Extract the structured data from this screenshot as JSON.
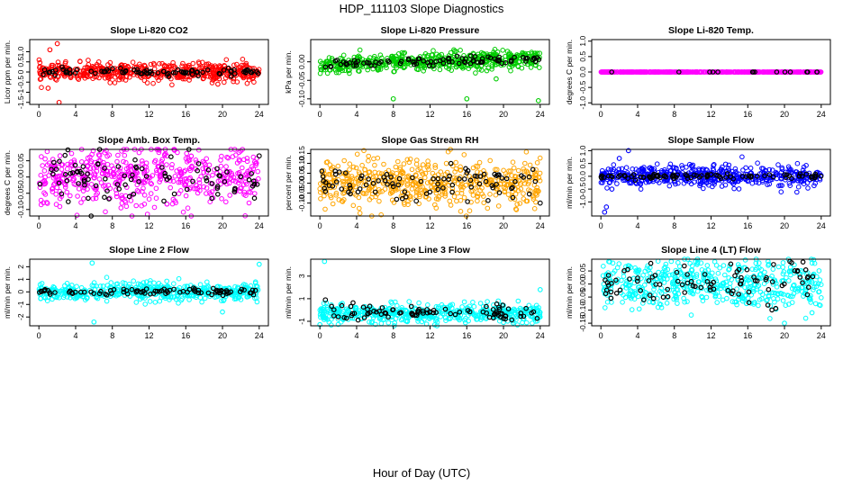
{
  "title": "HDP_111103  Slope Diagnostics",
  "xlabel": "Hour of Day (UTC)",
  "x_ticks": [
    "0",
    "4",
    "8",
    "12",
    "16",
    "20",
    "24"
  ],
  "chart_data": [
    {
      "type": "scatter",
      "title": "Slope Li-820 CO2",
      "ylabel": "Licor ppm per min.",
      "ylim": [
        -1.6,
        1.6
      ],
      "yticks": [
        -1.5,
        -1.0,
        -0.5,
        0.0,
        0.5,
        1.0
      ],
      "yticklabels": [
        "-1.5",
        "-1",
        "-0.5",
        "0",
        "0.5",
        "1.0"
      ],
      "series": [
        {
          "name": "all",
          "color": "#ff0000",
          "spread": 0.22,
          "outliers": [
            [
              2,
              1.4
            ],
            [
              1.2,
              1.1
            ],
            [
              2.2,
              -1.5
            ],
            [
              1,
              -0.8
            ],
            [
              19.5,
              -0.6
            ]
          ]
        },
        {
          "name": "highlighted",
          "color": "#000000",
          "spread": 0.08
        }
      ]
    },
    {
      "type": "scatter",
      "title": "Slope Li-820 Pressure",
      "ylabel": "kPa per min.",
      "ylim": [
        -0.115,
        0.06
      ],
      "yticks": [
        -0.1,
        -0.05,
        0.0
      ],
      "yticklabels": [
        "-0.10",
        "-0.05",
        "0.00"
      ],
      "series": [
        {
          "name": "all",
          "color": "#00cc00",
          "spread": 0.012,
          "trend": 0.0008,
          "outliers": [
            [
              8,
              -0.1
            ],
            [
              16,
              -0.1
            ],
            [
              23.8,
              -0.105
            ],
            [
              19.2,
              -0.046
            ]
          ]
        },
        {
          "name": "highlighted",
          "color": "#000000",
          "spread": 0.006,
          "trend": 0.0006
        }
      ]
    },
    {
      "type": "scatter",
      "title": "Slope Li-820 Temp.",
      "ylabel": "degrees C per min.",
      "ylim": [
        -1.05,
        1.05
      ],
      "yticks": [
        -1.0,
        -0.5,
        0.0,
        0.5,
        1.0
      ],
      "yticklabels": [
        "-1.0",
        "-0.5",
        "0.0",
        "0.5",
        "1.0"
      ],
      "series": [
        {
          "name": "all",
          "color": "#ff00ff",
          "spread": 0.0
        },
        {
          "name": "highlighted",
          "color": "#000000",
          "spread": 0.0
        }
      ]
    },
    {
      "type": "scatter",
      "title": "Slope Amb. Box Temp.",
      "ylabel": "degrees C per min.",
      "ylim": [
        -0.12,
        0.085
      ],
      "yticks": [
        -0.1,
        -0.05,
        0.0,
        0.05
      ],
      "yticklabels": [
        "-0.10",
        "-0.05",
        "0.00",
        "0.05"
      ],
      "series": [
        {
          "name": "all",
          "color": "#ff00ff",
          "spread": 0.045
        },
        {
          "name": "highlighted",
          "color": "#000000",
          "spread": 0.04,
          "outliers": [
            [
              24,
              0.065
            ]
          ]
        }
      ]
    },
    {
      "type": "scatter",
      "title": "Slope Gas Stream RH",
      "ylabel": "percent per min.",
      "ylim": [
        -0.165,
        0.17
      ],
      "yticks": [
        -0.1,
        -0.05,
        0.0,
        0.05,
        0.1,
        0.15
      ],
      "yticklabels": [
        "-0.10",
        "-0.05",
        "0.00",
        "0.05",
        "0.10",
        "0.15"
      ],
      "series": [
        {
          "name": "all",
          "color": "#ffa500",
          "spread": 0.06
        },
        {
          "name": "highlighted",
          "color": "#000000",
          "spread": 0.04,
          "outliers": [
            [
              24,
              -0.1
            ],
            [
              10.5,
              -0.09
            ]
          ]
        }
      ]
    },
    {
      "type": "scatter",
      "title": "Slope Sample Flow",
      "ylabel": "ml/min per min.",
      "ylim": [
        -1.55,
        1.05
      ],
      "yticks": [
        -1.0,
        -0.5,
        0.0,
        0.5,
        1.0
      ],
      "yticklabels": [
        "-1.0",
        "-0.5",
        "0.0",
        "0.5",
        "1.0"
      ],
      "series": [
        {
          "name": "all",
          "color": "#0000ff",
          "spread": 0.2,
          "outliers": [
            [
              0.6,
              -1.2
            ],
            [
              1.2,
              -0.5
            ],
            [
              3,
              1.0
            ],
            [
              2,
              0.7
            ],
            [
              0.4,
              -1.4
            ]
          ]
        },
        {
          "name": "highlighted",
          "color": "#000000",
          "spread": 0.05
        }
      ]
    },
    {
      "type": "scatter",
      "title": "Slope Line 2 Flow",
      "ylabel": "ml/min per min.",
      "ylim": [
        -2.7,
        2.6
      ],
      "yticks": [
        -2,
        -1,
        0,
        1,
        2
      ],
      "yticklabels": [
        "-2",
        "-1",
        "0",
        "1",
        "2"
      ],
      "series": [
        {
          "name": "all",
          "color": "#00ffff",
          "spread": 0.35,
          "outliers": [
            [
              5.8,
              2.3
            ],
            [
              24,
              2.2
            ],
            [
              20,
              -1.6
            ],
            [
              6,
              -2.4
            ]
          ]
        },
        {
          "name": "highlighted",
          "color": "#000000",
          "spread": 0.12
        }
      ]
    },
    {
      "type": "scatter",
      "title": "Slope Line 3 Flow",
      "ylabel": "ml/min per min.",
      "ylim": [
        -1.4,
        4.5
      ],
      "yticks": [
        -1,
        1,
        3
      ],
      "yticklabels": [
        "-1",
        "1",
        "3"
      ],
      "series": [
        {
          "name": "all",
          "color": "#00ffff",
          "spread": 0.4,
          "center": -0.3,
          "outliers": [
            [
              0.5,
              4.3
            ],
            [
              24,
              1.8
            ],
            [
              0,
              -1.3
            ],
            [
              20,
              -1.1
            ]
          ]
        },
        {
          "name": "highlighted",
          "color": "#000000",
          "spread": 0.3,
          "center": -0.2,
          "outliers": [
            [
              0.6,
              0.9
            ]
          ]
        }
      ]
    },
    {
      "type": "scatter",
      "title": "Slope Line 4 (LT) Flow",
      "ylabel": "ml/min per min.",
      "ylim": [
        -0.16,
        0.095
      ],
      "yticks": [
        -0.15,
        -0.1,
        -0.05,
        0.0,
        0.05
      ],
      "yticklabels": [
        "-0.15",
        "-0.10",
        "-0.05",
        "0.00",
        "0.05"
      ],
      "series": [
        {
          "name": "all",
          "color": "#00ffff",
          "spread": 0.045,
          "outliers": [
            [
              20,
              -0.15
            ],
            [
              23,
              -0.11
            ]
          ]
        },
        {
          "name": "highlighted",
          "color": "#000000",
          "spread": 0.04
        }
      ]
    }
  ]
}
